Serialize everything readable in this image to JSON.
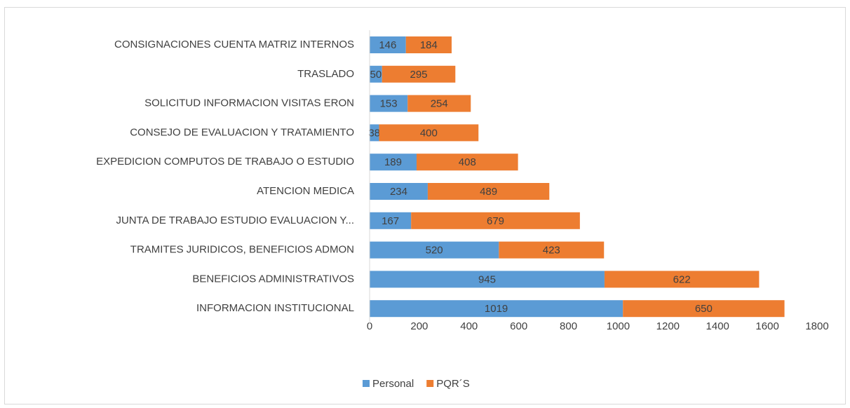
{
  "chart_data": {
    "type": "stacked_barh",
    "categories": [
      "CONSIGNACIONES CUENTA MATRIZ INTERNOS",
      "TRASLADO",
      "SOLICITUD INFORMACION VISITAS ERON",
      "CONSEJO DE EVALUACION Y TRATAMIENTO",
      "EXPEDICION COMPUTOS DE TRABAJO O ESTUDIO",
      "ATENCION MEDICA",
      "JUNTA DE TRABAJO ESTUDIO EVALUACION Y...",
      "TRAMITES JURIDICOS, BENEFICIOS ADMON",
      "BENEFICIOS ADMINISTRATIVOS",
      "INFORMACION INSTITUCIONAL"
    ],
    "series": [
      {
        "name": "Personal",
        "color": "#5b9bd5",
        "values": [
          146,
          50,
          153,
          38,
          189,
          234,
          167,
          520,
          945,
          1019
        ]
      },
      {
        "name": "PQR´S",
        "color": "#ed7d31",
        "values": [
          184,
          295,
          254,
          400,
          408,
          489,
          679,
          423,
          622,
          650
        ]
      }
    ],
    "xlim": [
      0,
      1800
    ],
    "xticks": [
      0,
      200,
      400,
      600,
      800,
      1000,
      1200,
      1400,
      1600,
      1800
    ],
    "legend": "bottom"
  }
}
